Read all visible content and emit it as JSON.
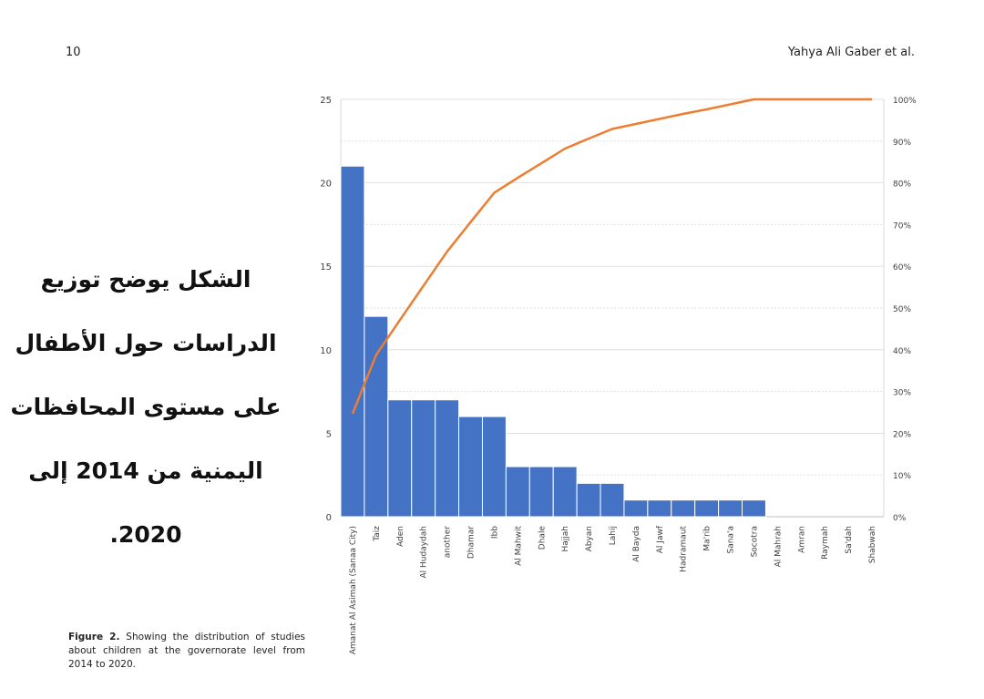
{
  "header": {
    "page_number": "10",
    "running_head": "Yahya Ali Gaber et al."
  },
  "arabic_caption": [
    "الشكل يوضح توزيع",
    "الدراسات حول الأطفال",
    "على مستوى المحافظات",
    "اليمنية من 2014 إلى",
    ".2020"
  ],
  "figure_caption": {
    "label": "Figure 2.",
    "text": "Showing the distribution of studies about children at the governorate level from 2014 to 2020."
  },
  "chart_data": {
    "type": "bar",
    "categories": [
      "Amanat Al Asimah (Sanaa City)",
      "Taiz",
      "Aden",
      "Al Hudaydah",
      "another",
      "Dhamar",
      "Ibb",
      "Al Mahwit",
      "Dhale",
      "Hajjah",
      "Abyan",
      "Lahij",
      "Al Bayda",
      "Al Jawf",
      "Hadramaut",
      "Ma'rib",
      "Sana'a",
      "Socotra",
      "Al Mahrah",
      "Amran",
      "Raymah",
      "Sa'dah",
      "Shabwah"
    ],
    "series": [
      {
        "type": "bar",
        "axis": "left",
        "color": "#4472C4",
        "values": [
          21,
          12,
          7,
          7,
          7,
          6,
          6,
          3,
          3,
          3,
          2,
          2,
          1,
          1,
          1,
          1,
          1,
          1,
          0,
          0,
          0,
          0,
          0
        ]
      },
      {
        "type": "line",
        "axis": "right",
        "color": "#ED7D31",
        "values": [
          24.7,
          38.8,
          47.1,
          55.3,
          63.5,
          70.6,
          77.6,
          81.2,
          84.7,
          88.2,
          90.6,
          92.9,
          94.1,
          95.3,
          96.5,
          97.6,
          98.8,
          100,
          100,
          100,
          100,
          100,
          100
        ]
      }
    ],
    "y_left": {
      "min": 0,
      "max": 25,
      "ticks": [
        "0",
        "5",
        "10",
        "15",
        "20",
        "25"
      ]
    },
    "y_right": {
      "min": 0,
      "max": 100,
      "ticks": [
        "0%",
        "10%",
        "20%",
        "30%",
        "40%",
        "50%",
        "60%",
        "70%",
        "80%",
        "90%",
        "100%"
      ]
    },
    "grid": true,
    "legend": "none"
  }
}
